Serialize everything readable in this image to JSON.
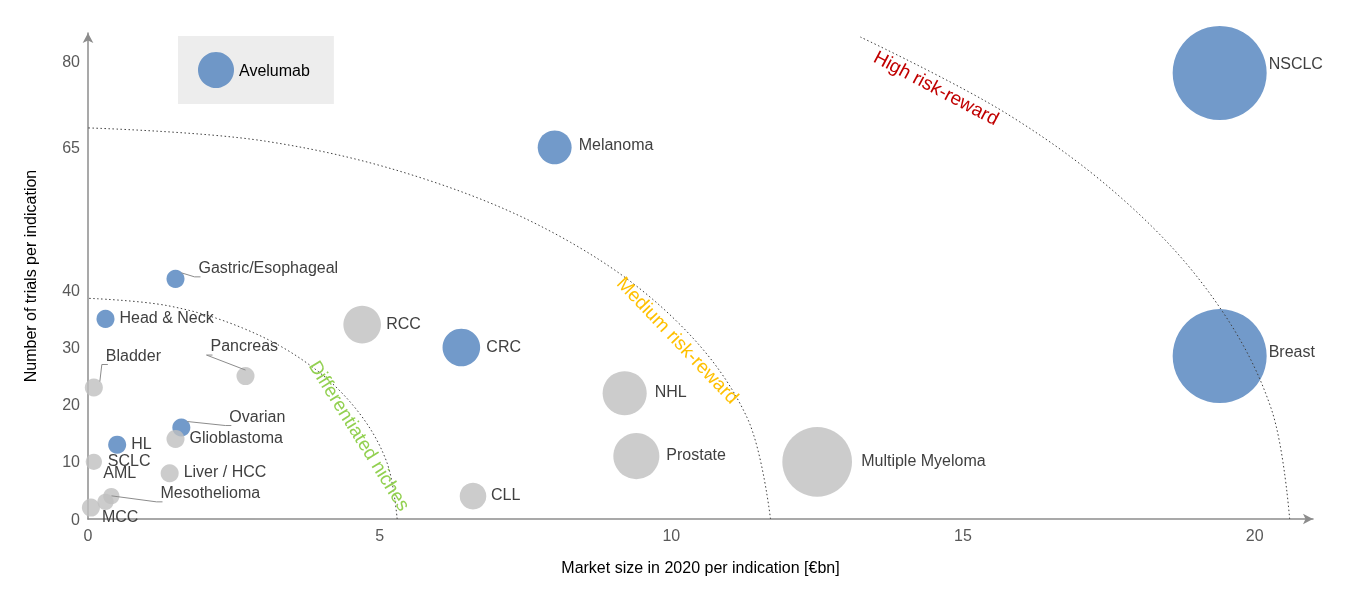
{
  "chart_data": {
    "type": "bubble",
    "xlabel": "Market size in 2020 per indication [€bn]",
    "ylabel": "Number of trials per indication",
    "xlim": [
      0,
      21
    ],
    "xticks": [
      0,
      5,
      10,
      15,
      20
    ],
    "ylim": [
      0,
      85
    ],
    "yticks": [
      0,
      10,
      20,
      30,
      40,
      65,
      80
    ],
    "grid": false,
    "legend": "top left",
    "marker": "circle",
    "series": [
      {
        "name": "Avelumab",
        "color": "#4f81bd",
        "x": [
          19.4,
          19.4,
          8,
          1.5,
          0.3,
          6.4,
          1.6,
          0.5
        ],
        "values": [
          78,
          28.5,
          65,
          42,
          35,
          30,
          16,
          13
        ],
        "sizes": [
          1,
          1,
          0.13,
          0.037,
          0.037,
          0.16,
          0.037,
          0.037
        ]
      },
      {
        "color": "#bfbfbf",
        "x": [
          4.7,
          2.7,
          0.1,
          9.2,
          1.5,
          9.4,
          12.5,
          0.1,
          1.4,
          6.6,
          0.4,
          0.3,
          0.05
        ],
        "values": [
          34,
          25,
          23,
          22,
          14,
          11,
          10,
          10,
          8,
          4,
          4,
          3,
          2
        ],
        "sizes": [
          0.16,
          0.037,
          0.037,
          0.22,
          0.037,
          0.24,
          0.55,
          0.03,
          0.037,
          0.08,
          0.03,
          0.03,
          0.037
        ]
      },
      {
        "type": "line",
        "color": "#404040",
        "line_style": "dotted",
        "marker": "none",
        "x": [
          5.3,
          5.12,
          4.59,
          3.75,
          2.65,
          1.37,
          0
        ],
        "values": [
          0,
          10,
          19.3,
          27.3,
          33.4,
          37.3,
          38.6
        ]
      },
      {
        "type": "line",
        "color": "#404040",
        "line_style": "dotted",
        "marker": "none",
        "x": [
          11.7,
          11.3,
          10.13,
          8.27,
          5.85,
          3.03,
          0
        ],
        "values": [
          0,
          17.7,
          34.2,
          48.4,
          59.2,
          66.1,
          68.4
        ]
      },
      {
        "type": "line",
        "color": "#404040",
        "line_style": "dotted",
        "marker": "none",
        "x": [
          20.6,
          20.29,
          19.36,
          17.84,
          15.78,
          13.24
        ],
        "values": [
          0,
          19.1,
          37.6,
          55,
          70.7,
          84.3
        ]
      }
    ],
    "annotations": [
      "NSCLC",
      "Breast",
      {
        "text": "Melanoma",
        "x": 8,
        "y": 65
      },
      {
        "text": "Gastric/Esophageal",
        "x": 1.5,
        "y": 42
      },
      {
        "text": "Head & Neck",
        "x": 0.3,
        "y": 35
      },
      {
        "text": "CRC",
        "x": 6.4,
        "y": 30
      },
      {
        "text": "Ovarian",
        "x": 1.6,
        "y": 16
      },
      {
        "text": "HL",
        "x": 0.5,
        "y": 13
      },
      {
        "text": "RCC",
        "x": 4.7,
        "y": 34
      },
      {
        "text": "Pancreas",
        "x": 2.7,
        "y": 25
      },
      {
        "text": "Bladder",
        "x": 0.1,
        "y": 23
      },
      {
        "text": "NHL",
        "x": 9.2,
        "y": 22
      },
      {
        "text": "Glioblastoma",
        "x": 1.5,
        "y": 14
      },
      {
        "text": "Prostate",
        "x": 9.4,
        "y": 11
      },
      {
        "text": "Multiple Myeloma",
        "x": 12.5,
        "y": 10
      },
      {
        "text": "SCLC",
        "x": 0.1,
        "y": 10
      },
      {
        "text": "Liver / HCC",
        "x": 1.4,
        "y": 8
      },
      {
        "text": "CLL",
        "x": 6.6,
        "y": 4
      },
      {
        "text": "AML",
        "x": 0.4,
        "y": 4
      },
      {
        "text": "Mesothelioma",
        "x": 0.3,
        "y": 3
      },
      {
        "text": "MCC",
        "x": 0.05,
        "y": 2
      },
      "Differentiated niches",
      "Medium risk-reward",
      "High risk-reward"
    ]
  }
}
